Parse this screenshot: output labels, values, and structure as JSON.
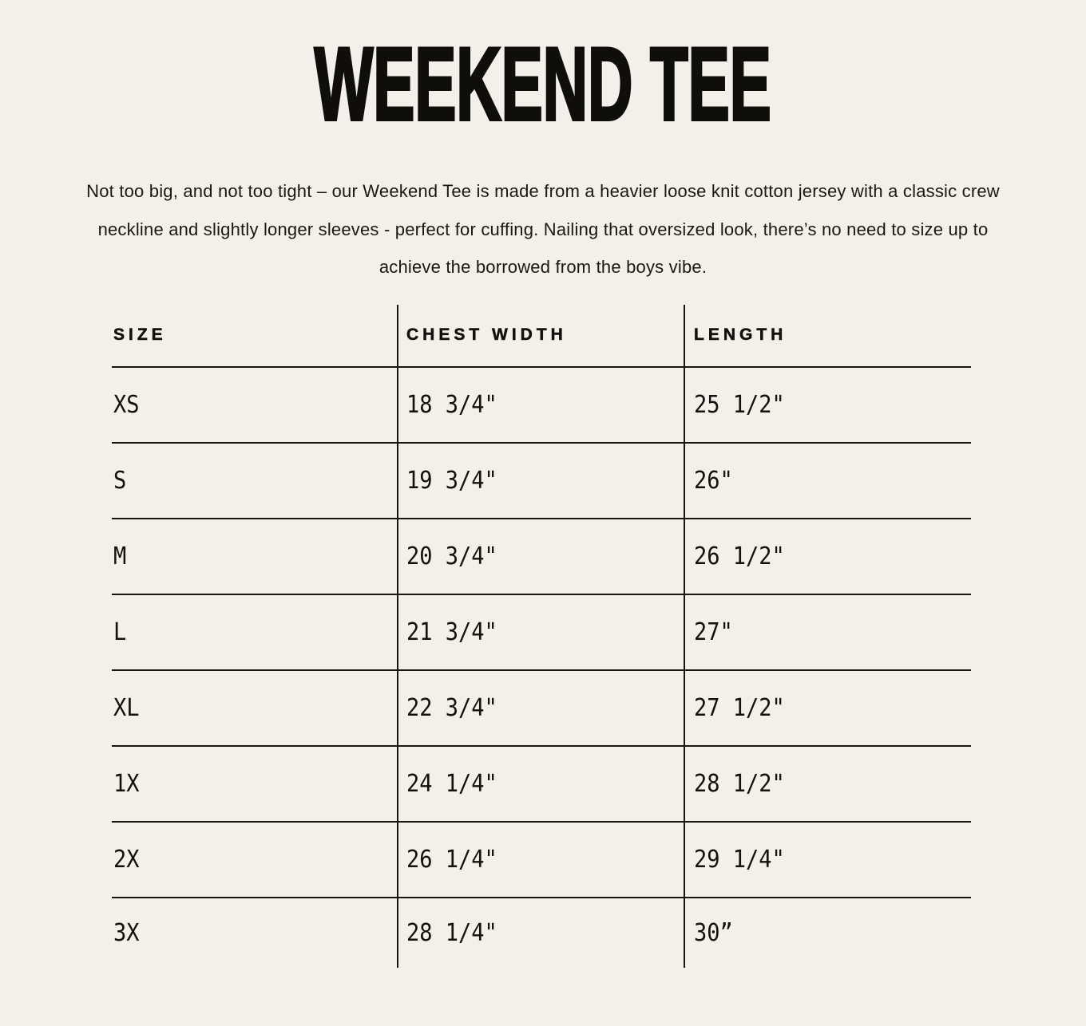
{
  "page": {
    "title": "WEEKEND TEE",
    "description_lines": [
      "Not too big, and not too tight – our Weekend Tee is made from a heavier loose knit cotton jersey with a classic crew",
      "neckline and slightly longer sleeves - perfect for cuffing. Nailing that oversized look, there’s no need to size up to",
      "achieve the borrowed from the boys vibe."
    ]
  },
  "size_chart": {
    "columns": [
      "SIZE",
      "CHEST WIDTH",
      "LENGTH"
    ],
    "rows": [
      {
        "size": "XS",
        "chest_width": "18 3/4\"",
        "length": "25 1/2\""
      },
      {
        "size": "S",
        "chest_width": "19 3/4\"",
        "length": "26\""
      },
      {
        "size": "M",
        "chest_width": "20 3/4\"",
        "length": "26 1/2\""
      },
      {
        "size": "L",
        "chest_width": "21 3/4\"",
        "length": "27\""
      },
      {
        "size": "XL",
        "chest_width": "22 3/4\"",
        "length": "27 1/2\""
      },
      {
        "size": "1X",
        "chest_width": "24 1/4\"",
        "length": "28 1/2\""
      },
      {
        "size": "2X",
        "chest_width": "26 1/4\"",
        "length": "29 1/4\""
      },
      {
        "size": "3X",
        "chest_width": "28 1/4\"",
        "length": "30”"
      }
    ]
  },
  "colors": {
    "background": "#f2f0e9",
    "text": "#12110c",
    "rule": "#17150f"
  }
}
